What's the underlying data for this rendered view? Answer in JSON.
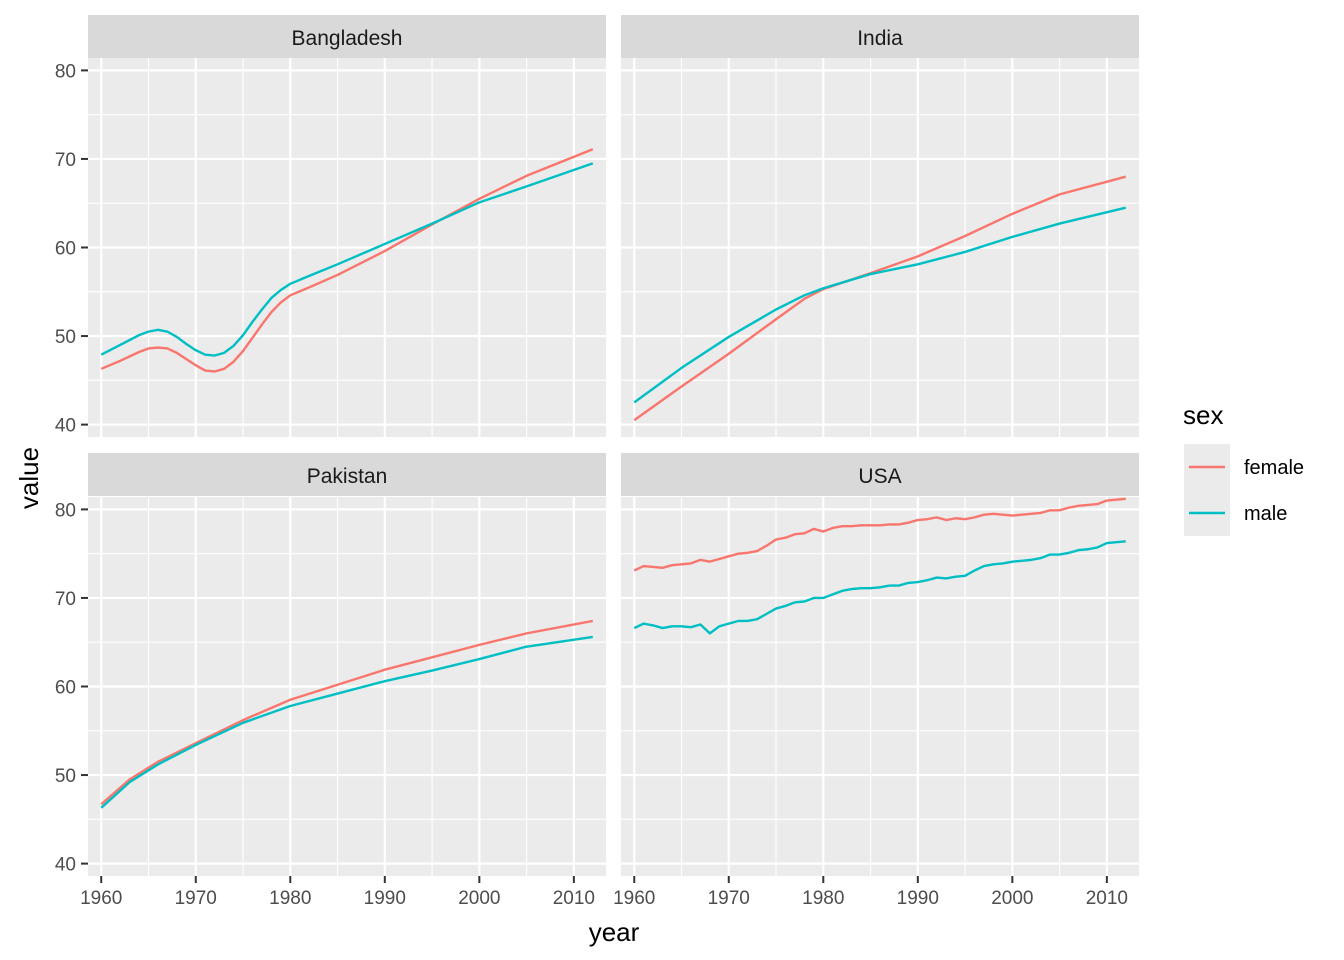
{
  "chart_data": {
    "type": "line",
    "facet_by": "country",
    "xlabel": "year",
    "ylabel": "value",
    "xlim": [
      1958.6,
      2013.4
    ],
    "ylim": [
      38.6,
      81.4
    ],
    "x_ticks": [
      1960,
      1970,
      1980,
      1990,
      2000,
      2010
    ],
    "y_ticks": [
      40,
      50,
      60,
      70,
      80
    ],
    "legend": {
      "title": "sex",
      "position": "right",
      "entries": [
        {
          "label": "female",
          "color": "#F8766D"
        },
        {
          "label": "male",
          "color": "#00BFC4"
        }
      ]
    },
    "panels": [
      {
        "title": "Bangladesh",
        "series": [
          {
            "name": "female",
            "color": "#F8766D",
            "points": [
              [
                1960,
                46.3
              ],
              [
                1962,
                47.2
              ],
              [
                1964,
                48.2
              ],
              [
                1965,
                48.6
              ],
              [
                1966,
                48.7
              ],
              [
                1967,
                48.6
              ],
              [
                1968,
                48.1
              ],
              [
                1969,
                47.4
              ],
              [
                1970,
                46.7
              ],
              [
                1971,
                46.1
              ],
              [
                1972,
                46.0
              ],
              [
                1973,
                46.3
              ],
              [
                1974,
                47.1
              ],
              [
                1975,
                48.3
              ],
              [
                1976,
                49.8
              ],
              [
                1977,
                51.3
              ],
              [
                1978,
                52.7
              ],
              [
                1979,
                53.8
              ],
              [
                1980,
                54.6
              ],
              [
                1982,
                55.5
              ],
              [
                1985,
                56.9
              ],
              [
                1990,
                59.6
              ],
              [
                1995,
                62.6
              ],
              [
                2000,
                65.5
              ],
              [
                2005,
                68.1
              ],
              [
                2012,
                71.1
              ]
            ]
          },
          {
            "name": "male",
            "color": "#00BFC4",
            "points": [
              [
                1960,
                47.9
              ],
              [
                1962,
                49.0
              ],
              [
                1964,
                50.1
              ],
              [
                1965,
                50.5
              ],
              [
                1966,
                50.7
              ],
              [
                1967,
                50.5
              ],
              [
                1968,
                49.9
              ],
              [
                1969,
                49.1
              ],
              [
                1970,
                48.4
              ],
              [
                1971,
                47.9
              ],
              [
                1972,
                47.8
              ],
              [
                1973,
                48.1
              ],
              [
                1974,
                48.9
              ],
              [
                1975,
                50.1
              ],
              [
                1976,
                51.6
              ],
              [
                1977,
                53.0
              ],
              [
                1978,
                54.3
              ],
              [
                1979,
                55.2
              ],
              [
                1980,
                55.9
              ],
              [
                1982,
                56.8
              ],
              [
                1985,
                58.1
              ],
              [
                1990,
                60.4
              ],
              [
                1995,
                62.7
              ],
              [
                2000,
                65.1
              ],
              [
                2005,
                66.9
              ],
              [
                2012,
                69.5
              ]
            ]
          }
        ]
      },
      {
        "title": "India",
        "series": [
          {
            "name": "female",
            "color": "#F8766D",
            "points": [
              [
                1960,
                40.5
              ],
              [
                1965,
                44.3
              ],
              [
                1970,
                48.0
              ],
              [
                1975,
                51.9
              ],
              [
                1978,
                54.2
              ],
              [
                1980,
                55.3
              ],
              [
                1985,
                57.1
              ],
              [
                1990,
                59.0
              ],
              [
                1995,
                61.3
              ],
              [
                2000,
                63.8
              ],
              [
                2005,
                66.0
              ],
              [
                2012,
                68.0
              ]
            ]
          },
          {
            "name": "male",
            "color": "#00BFC4",
            "points": [
              [
                1960,
                42.5
              ],
              [
                1965,
                46.4
              ],
              [
                1970,
                49.9
              ],
              [
                1975,
                53.0
              ],
              [
                1978,
                54.6
              ],
              [
                1980,
                55.4
              ],
              [
                1985,
                57.0
              ],
              [
                1990,
                58.1
              ],
              [
                1995,
                59.5
              ],
              [
                2000,
                61.2
              ],
              [
                2005,
                62.7
              ],
              [
                2012,
                64.5
              ]
            ]
          }
        ]
      },
      {
        "title": "Pakistan",
        "series": [
          {
            "name": "female",
            "color": "#F8766D",
            "points": [
              [
                1960,
                46.7
              ],
              [
                1963,
                49.5
              ],
              [
                1966,
                51.5
              ],
              [
                1970,
                53.6
              ],
              [
                1975,
                56.2
              ],
              [
                1980,
                58.5
              ],
              [
                1985,
                60.2
              ],
              [
                1990,
                61.9
              ],
              [
                1995,
                63.3
              ],
              [
                2000,
                64.7
              ],
              [
                2005,
                66.0
              ],
              [
                2012,
                67.4
              ]
            ]
          },
          {
            "name": "male",
            "color": "#00BFC4",
            "points": [
              [
                1960,
                46.3
              ],
              [
                1963,
                49.2
              ],
              [
                1966,
                51.2
              ],
              [
                1970,
                53.4
              ],
              [
                1975,
                55.9
              ],
              [
                1980,
                57.8
              ],
              [
                1985,
                59.2
              ],
              [
                1990,
                60.6
              ],
              [
                1995,
                61.8
              ],
              [
                2000,
                63.1
              ],
              [
                2005,
                64.5
              ],
              [
                2012,
                65.6
              ]
            ]
          }
        ]
      },
      {
        "title": "USA",
        "series": [
          {
            "name": "female",
            "color": "#F8766D",
            "points": [
              [
                1960,
                73.1
              ],
              [
                1961,
                73.6
              ],
              [
                1962,
                73.5
              ],
              [
                1963,
                73.4
              ],
              [
                1964,
                73.7
              ],
              [
                1965,
                73.8
              ],
              [
                1966,
                73.9
              ],
              [
                1967,
                74.3
              ],
              [
                1968,
                74.1
              ],
              [
                1969,
                74.4
              ],
              [
                1970,
                74.7
              ],
              [
                1971,
                75.0
              ],
              [
                1972,
                75.1
              ],
              [
                1973,
                75.3
              ],
              [
                1974,
                75.9
              ],
              [
                1975,
                76.6
              ],
              [
                1976,
                76.8
              ],
              [
                1977,
                77.2
              ],
              [
                1978,
                77.3
              ],
              [
                1979,
                77.8
              ],
              [
                1980,
                77.5
              ],
              [
                1981,
                77.9
              ],
              [
                1982,
                78.1
              ],
              [
                1983,
                78.1
              ],
              [
                1984,
                78.2
              ],
              [
                1985,
                78.2
              ],
              [
                1986,
                78.2
              ],
              [
                1987,
                78.3
              ],
              [
                1988,
                78.3
              ],
              [
                1989,
                78.5
              ],
              [
                1990,
                78.8
              ],
              [
                1991,
                78.9
              ],
              [
                1992,
                79.1
              ],
              [
                1993,
                78.8
              ],
              [
                1994,
                79.0
              ],
              [
                1995,
                78.9
              ],
              [
                1996,
                79.1
              ],
              [
                1997,
                79.4
              ],
              [
                1998,
                79.5
              ],
              [
                1999,
                79.4
              ],
              [
                2000,
                79.3
              ],
              [
                2001,
                79.4
              ],
              [
                2002,
                79.5
              ],
              [
                2003,
                79.6
              ],
              [
                2004,
                79.9
              ],
              [
                2005,
                79.9
              ],
              [
                2006,
                80.2
              ],
              [
                2007,
                80.4
              ],
              [
                2008,
                80.5
              ],
              [
                2009,
                80.6
              ],
              [
                2010,
                81.0
              ],
              [
                2011,
                81.1
              ],
              [
                2012,
                81.2
              ]
            ]
          },
          {
            "name": "male",
            "color": "#00BFC4",
            "points": [
              [
                1960,
                66.6
              ],
              [
                1961,
                67.1
              ],
              [
                1962,
                66.9
              ],
              [
                1963,
                66.6
              ],
              [
                1964,
                66.8
              ],
              [
                1965,
                66.8
              ],
              [
                1966,
                66.7
              ],
              [
                1967,
                67.0
              ],
              [
                1968,
                66.0
              ],
              [
                1969,
                66.8
              ],
              [
                1970,
                67.1
              ],
              [
                1971,
                67.4
              ],
              [
                1972,
                67.4
              ],
              [
                1973,
                67.6
              ],
              [
                1974,
                68.2
              ],
              [
                1975,
                68.8
              ],
              [
                1976,
                69.1
              ],
              [
                1977,
                69.5
              ],
              [
                1978,
                69.6
              ],
              [
                1979,
                70.0
              ],
              [
                1980,
                70.0
              ],
              [
                1981,
                70.4
              ],
              [
                1982,
                70.8
              ],
              [
                1983,
                71.0
              ],
              [
                1984,
                71.1
              ],
              [
                1985,
                71.1
              ],
              [
                1986,
                71.2
              ],
              [
                1987,
                71.4
              ],
              [
                1988,
                71.4
              ],
              [
                1989,
                71.7
              ],
              [
                1990,
                71.8
              ],
              [
                1991,
                72.0
              ],
              [
                1992,
                72.3
              ],
              [
                1993,
                72.2
              ],
              [
                1994,
                72.4
              ],
              [
                1995,
                72.5
              ],
              [
                1996,
                73.1
              ],
              [
                1997,
                73.6
              ],
              [
                1998,
                73.8
              ],
              [
                1999,
                73.9
              ],
              [
                2000,
                74.1
              ],
              [
                2001,
                74.2
              ],
              [
                2002,
                74.3
              ],
              [
                2003,
                74.5
              ],
              [
                2004,
                74.9
              ],
              [
                2005,
                74.9
              ],
              [
                2006,
                75.1
              ],
              [
                2007,
                75.4
              ],
              [
                2008,
                75.5
              ],
              [
                2009,
                75.7
              ],
              [
                2010,
                76.2
              ],
              [
                2011,
                76.3
              ],
              [
                2012,
                76.4
              ]
            ]
          }
        ]
      }
    ]
  }
}
